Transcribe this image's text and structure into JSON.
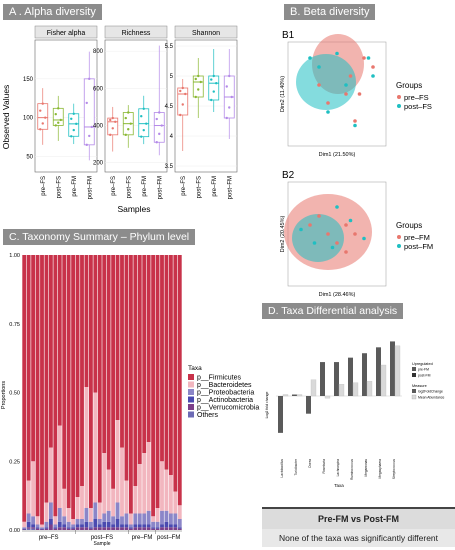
{
  "panels": {
    "alpha": {
      "header": "A . Alpha diversity",
      "ylabel": "Observed Values",
      "xlabel": "Samples"
    },
    "beta": {
      "header": "B. Beta diversity",
      "b1": {
        "label": "B1",
        "xlabel": "Dim1 (21.50%)",
        "ylabel": "Dim2 (11.40%)",
        "legend_title": "Groups",
        "legend": [
          "pre–FS",
          "post–FS"
        ]
      },
      "b2": {
        "label": "B2",
        "xlabel": "Dim1 (28.46%)",
        "ylabel": "Dim2 (20.45%)",
        "legend_title": "Groups",
        "legend": [
          "pre–FM",
          "post–FM"
        ]
      }
    },
    "taxonomy": {
      "header": "C.  Taxonomy Summary – Phylum level",
      "ylabel": "Proportions",
      "xlabel": "Sample",
      "legend_title": "Taxa"
    },
    "diff": {
      "header": "D.  Taxa Differential analysis",
      "ylabel": "Log2 fold change",
      "xlabel": "Taxa",
      "legend_title1": "Upregulated",
      "legend_title2": "Measure",
      "legend": [
        "pre-FM",
        "post-FM",
        "log2FoldChange",
        "Mean Abundance"
      ]
    }
  },
  "colors": {
    "preFS": "#e8776e",
    "postFS": "#8ab833",
    "preFM": "#1fbfc2",
    "postFM": "#b48ae8",
    "firmicutes": "#c8324a",
    "bacteroidetes": "#f2b6bf",
    "proteobacteria": "#8b86c8",
    "actinobacteria": "#4a4ab0",
    "verrucomicrobia": "#7b3f8a",
    "others": "#6d6bb5"
  },
  "footer": {
    "title": "Pre-FM vs Post-FM",
    "caption": "None of the taxa was significantly different"
  },
  "chart_data": [
    {
      "type": "box",
      "facets": [
        {
          "title": "Fisher alpha",
          "yticks": [
            50,
            100,
            150
          ],
          "ylim": [
            30,
            200
          ],
          "boxes": [
            {
              "group": "pre–FS",
              "q1": 85,
              "median": 100,
              "q3": 118,
              "low": 65,
              "high": 138
            },
            {
              "group": "post–FS",
              "q1": 90,
              "median": 97,
              "q3": 112,
              "low": 70,
              "high": 128
            },
            {
              "group": "pre–FM",
              "q1": 76,
              "median": 92,
              "q3": 105,
              "low": 66,
              "high": 118
            },
            {
              "group": "post–FM",
              "q1": 65,
              "median": 88,
              "q3": 150,
              "low": 45,
              "high": 185
            }
          ]
        },
        {
          "title": "Richness",
          "yticks": [
            200,
            400,
            600,
            800
          ],
          "ylim": [
            150,
            860
          ],
          "boxes": [
            {
              "group": "pre–FS",
              "q1": 350,
              "median": 420,
              "q3": 440,
              "low": 260,
              "high": 500
            },
            {
              "group": "post–FS",
              "q1": 350,
              "median": 410,
              "q3": 470,
              "low": 280,
              "high": 510
            },
            {
              "group": "pre–FM",
              "q1": 340,
              "median": 410,
              "q3": 490,
              "low": 300,
              "high": 560
            },
            {
              "group": "post–FM",
              "q1": 310,
              "median": 400,
              "q3": 470,
              "low": 240,
              "high": 830
            }
          ]
        },
        {
          "title": "Shannon",
          "yticks": [
            3.5,
            4.0,
            4.5,
            5.0,
            5.5
          ],
          "ylim": [
            3.4,
            5.6
          ],
          "boxes": [
            {
              "group": "pre–FS",
              "q1": 4.35,
              "median": 4.7,
              "q3": 4.8,
              "low": 3.75,
              "high": 4.95
            },
            {
              "group": "post–FS",
              "q1": 4.65,
              "median": 4.9,
              "q3": 5.0,
              "low": 4.3,
              "high": 5.3
            },
            {
              "group": "pre–FM",
              "q1": 4.6,
              "median": 4.88,
              "q3": 5.0,
              "low": 4.4,
              "high": 5.45
            },
            {
              "group": "post–FM",
              "q1": 4.3,
              "median": 4.65,
              "q3": 5.0,
              "low": 3.95,
              "high": 5.45
            }
          ]
        }
      ]
    },
    {
      "type": "scatter",
      "title": "B1",
      "series": [
        {
          "name": "pre–FS",
          "x": [
            0.3,
            0.4,
            -0.2,
            0.1,
            -0.1,
            0.15,
            0.2,
            0.25
          ],
          "y": [
            0.4,
            0.3,
            0.1,
            0.0,
            -0.1,
            0.2,
            -0.3,
            0.0
          ]
        },
        {
          "name": "post–FS",
          "x": [
            -0.3,
            -0.2,
            0.0,
            0.1,
            0.4,
            0.35,
            -0.1,
            0.2
          ],
          "y": [
            0.4,
            0.3,
            0.45,
            0.1,
            0.2,
            0.4,
            -0.2,
            -0.35
          ]
        }
      ]
    },
    {
      "type": "scatter",
      "title": "B2",
      "series": [
        {
          "name": "pre–FM",
          "x": [
            -0.3,
            -0.1,
            0.0,
            0.1,
            0.2,
            -0.2,
            0.1
          ],
          "y": [
            0.1,
            0.0,
            -0.1,
            -0.2,
            0.0,
            0.2,
            0.1
          ]
        },
        {
          "name": "post–FM",
          "x": [
            -0.4,
            -0.25,
            0.0,
            0.15,
            0.3,
            -0.05
          ],
          "y": [
            0.05,
            -0.1,
            0.3,
            0.15,
            -0.05,
            -0.15
          ]
        }
      ]
    },
    {
      "type": "bar",
      "title": "Taxonomy Summary – Phylum level",
      "ylim": [
        0,
        1.0
      ],
      "yticks": [
        "0.00",
        "0.25",
        "0.50",
        "0.75",
        "1.00"
      ],
      "groups": [
        "pre–FS",
        "post–FS",
        "pre–FM",
        "post–FM"
      ],
      "group_sizes": [
        12,
        12,
        6,
        6
      ],
      "series_names": [
        "p__Firmicutes",
        "p__Bacteroidetes",
        "p__Proteobacteria",
        "p__Actinobacteria",
        "p__Verrucomicrobia",
        "Others"
      ],
      "firmicutes": [
        0.97,
        0.82,
        0.75,
        0.95,
        0.98,
        0.9,
        0.7,
        0.95,
        0.62,
        0.85,
        0.92,
        0.96,
        0.88,
        0.84,
        0.48,
        0.92,
        0.5,
        0.9,
        0.72,
        0.78,
        0.85,
        0.6,
        0.7,
        0.82,
        0.94,
        0.84,
        0.76,
        0.72,
        0.68,
        0.95,
        0.92,
        0.75,
        0.78,
        0.8,
        0.86,
        0.91
      ],
      "bacteroidetes": [
        0.02,
        0.12,
        0.2,
        0.03,
        0.01,
        0.07,
        0.2,
        0.03,
        0.3,
        0.1,
        0.05,
        0.02,
        0.08,
        0.12,
        0.44,
        0.05,
        0.4,
        0.06,
        0.22,
        0.15,
        0.1,
        0.3,
        0.25,
        0.12,
        0.04,
        0.1,
        0.18,
        0.22,
        0.25,
        0.02,
        0.05,
        0.18,
        0.15,
        0.14,
        0.08,
        0.05
      ],
      "proteobacteria": [
        0.005,
        0.03,
        0.03,
        0.01,
        0.005,
        0.02,
        0.06,
        0.01,
        0.05,
        0.03,
        0.02,
        0.01,
        0.02,
        0.02,
        0.05,
        0.02,
        0.06,
        0.02,
        0.03,
        0.04,
        0.03,
        0.06,
        0.03,
        0.04,
        0.01,
        0.04,
        0.04,
        0.04,
        0.05,
        0.02,
        0.02,
        0.05,
        0.04,
        0.04,
        0.04,
        0.03
      ],
      "actinobacteria": [
        0.003,
        0.02,
        0.01,
        0.005,
        0.003,
        0.005,
        0.02,
        0.005,
        0.02,
        0.01,
        0.005,
        0.005,
        0.01,
        0.01,
        0.02,
        0.005,
        0.03,
        0.01,
        0.02,
        0.02,
        0.01,
        0.03,
        0.01,
        0.01,
        0.005,
        0.01,
        0.01,
        0.01,
        0.01,
        0.005,
        0.005,
        0.01,
        0.02,
        0.01,
        0.01,
        0.005
      ],
      "verrucomicrobia": [
        0.002,
        0.005,
        0.005,
        0.005,
        0.002,
        0.005,
        0.02,
        0.005,
        0.01,
        0.01,
        0.005,
        0.005,
        0.01,
        0.01,
        0.01,
        0.005,
        0.01,
        0.01,
        0.01,
        0.01,
        0.01,
        0.01,
        0.01,
        0.01,
        0.005,
        0.01,
        0.01,
        0.01,
        0.01,
        0.005,
        0.005,
        0.01,
        0.01,
        0.01,
        0.01,
        0.005
      ]
    },
    {
      "type": "bar",
      "title": "Taxa Differential analysis",
      "categories": [
        "Lactobacillus",
        "Turicibacter",
        "Dorea",
        "Roseburia",
        "Lachnospira",
        "Ruminococcus",
        "Megamonas",
        "Megasphaera",
        "Streptococcus"
      ],
      "log2FoldChange": [
        -2.5,
        0.1,
        -1.2,
        2.3,
        2.3,
        2.6,
        2.9,
        3.3,
        3.7
      ],
      "mean_abundance": [
        0.1,
        0.1,
        1.1,
        -0.15,
        0.8,
        0.9,
        1.0,
        2.1,
        3.4
      ],
      "ylim": [
        -4,
        4
      ]
    }
  ]
}
